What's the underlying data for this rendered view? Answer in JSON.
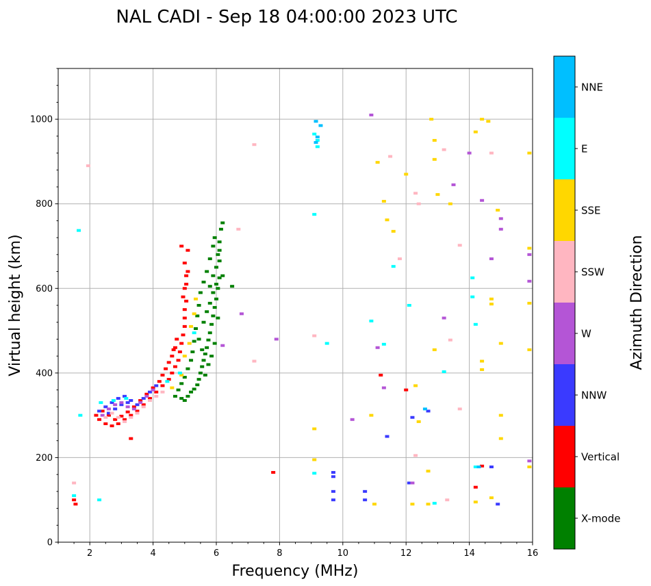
{
  "chart_data": {
    "type": "scatter",
    "title": "NAL CADI - Sep 18 04:00:00 2023 UTC",
    "xlabel": "Frequency (MHz)",
    "ylabel": "Virtual height (km)",
    "xlim": [
      1,
      16
    ],
    "ylim": [
      0,
      1120
    ],
    "xticks": [
      2,
      4,
      6,
      8,
      10,
      12,
      14,
      16
    ],
    "xtick_labels": [
      "2",
      "4",
      "6",
      "8",
      "10",
      "12",
      "14",
      "16"
    ],
    "yticks": [
      0,
      200,
      400,
      600,
      800,
      1000
    ],
    "ytick_labels": [
      "0",
      "200",
      "400",
      "600",
      "800",
      "1000"
    ],
    "grid": true,
    "colorbar": {
      "label": "Azimuth Direction",
      "categories": [
        "X-mode",
        "Vertical",
        "NNW",
        "W",
        "SSW",
        "SSE",
        "E",
        "NNE"
      ],
      "colors": {
        "X-mode": "#008000",
        "Vertical": "#ff0000",
        "NNW": "#3a3aff",
        "W": "#b455d6",
        "SSW": "#ffb6c1",
        "SSE": "#ffd700",
        "E": "#00ffff",
        "NNE": "#00bfff"
      }
    },
    "series": [
      {
        "name": "X-mode",
        "points": [
          [
            5.0,
            335
          ],
          [
            5.1,
            345
          ],
          [
            5.2,
            355
          ],
          [
            5.3,
            362
          ],
          [
            5.4,
            372
          ],
          [
            5.45,
            385
          ],
          [
            5.5,
            400
          ],
          [
            5.55,
            415
          ],
          [
            5.6,
            430
          ],
          [
            5.65,
            445
          ],
          [
            5.7,
            460
          ],
          [
            5.75,
            478
          ],
          [
            5.8,
            495
          ],
          [
            5.85,
            515
          ],
          [
            5.9,
            535
          ],
          [
            5.95,
            555
          ],
          [
            6.0,
            575
          ],
          [
            6.05,
            600
          ],
          [
            6.1,
            625
          ],
          [
            6.0,
            650
          ],
          [
            6.05,
            680
          ],
          [
            6.1,
            710
          ],
          [
            6.15,
            740
          ],
          [
            6.2,
            755
          ],
          [
            5.9,
            700
          ],
          [
            5.8,
            670
          ],
          [
            6.1,
            665
          ],
          [
            5.7,
            640
          ],
          [
            5.6,
            615
          ],
          [
            5.5,
            590
          ],
          [
            5.45,
            560
          ],
          [
            5.4,
            535
          ],
          [
            5.35,
            505
          ],
          [
            5.3,
            475
          ],
          [
            5.25,
            450
          ],
          [
            5.2,
            430
          ],
          [
            5.1,
            410
          ],
          [
            5.0,
            390
          ],
          [
            4.9,
            375
          ],
          [
            4.8,
            360
          ],
          [
            4.7,
            345
          ],
          [
            4.9,
            340
          ],
          [
            5.6,
            520
          ],
          [
            5.7,
            545
          ],
          [
            5.8,
            565
          ],
          [
            5.9,
            590
          ],
          [
            6.0,
            610
          ],
          [
            6.5,
            605
          ],
          [
            6.2,
            630
          ],
          [
            5.95,
            720
          ],
          [
            5.75,
            420
          ],
          [
            5.65,
            395
          ],
          [
            5.85,
            440
          ],
          [
            5.95,
            470
          ],
          [
            6.05,
            530
          ],
          [
            5.55,
            455
          ],
          [
            5.45,
            480
          ],
          [
            5.8,
            605
          ],
          [
            5.9,
            630
          ],
          [
            6.1,
            690
          ]
        ]
      },
      {
        "name": "Vertical",
        "points": [
          [
            2.2,
            300
          ],
          [
            2.3,
            290
          ],
          [
            2.5,
            280
          ],
          [
            2.7,
            275
          ],
          [
            2.9,
            280
          ],
          [
            3.1,
            290
          ],
          [
            3.3,
            300
          ],
          [
            3.5,
            310
          ],
          [
            3.7,
            325
          ],
          [
            3.9,
            340
          ],
          [
            4.1,
            355
          ],
          [
            4.3,
            370
          ],
          [
            4.5,
            385
          ],
          [
            4.6,
            400
          ],
          [
            4.7,
            415
          ],
          [
            4.8,
            430
          ],
          [
            4.85,
            450
          ],
          [
            4.9,
            470
          ],
          [
            4.95,
            490
          ],
          [
            5.0,
            510
          ],
          [
            5.0,
            530
          ],
          [
            5.0,
            550
          ],
          [
            5.05,
            570
          ],
          [
            5.0,
            600
          ],
          [
            5.05,
            630
          ],
          [
            5.0,
            660
          ],
          [
            5.1,
            690
          ],
          [
            4.9,
            700
          ],
          [
            4.7,
            460
          ],
          [
            4.6,
            440
          ],
          [
            4.5,
            425
          ],
          [
            4.4,
            410
          ],
          [
            4.3,
            395
          ],
          [
            4.2,
            380
          ],
          [
            4.0,
            365
          ],
          [
            3.8,
            350
          ],
          [
            3.6,
            335
          ],
          [
            3.4,
            320
          ],
          [
            3.2,
            308
          ],
          [
            3.0,
            298
          ],
          [
            2.8,
            290
          ],
          [
            2.6,
            300
          ],
          [
            2.4,
            310
          ],
          [
            3.3,
            245
          ],
          [
            1.5,
            100
          ],
          [
            1.55,
            90
          ],
          [
            7.8,
            165
          ],
          [
            11.2,
            395
          ],
          [
            12.0,
            360
          ],
          [
            14.2,
            130
          ],
          [
            14.4,
            180
          ],
          [
            4.95,
            580
          ],
          [
            5.05,
            610
          ],
          [
            5.1,
            640
          ],
          [
            4.75,
            480
          ],
          [
            4.65,
            455
          ]
        ]
      },
      {
        "name": "NNW",
        "points": [
          [
            2.3,
            310
          ],
          [
            2.5,
            320
          ],
          [
            2.7,
            330
          ],
          [
            2.9,
            340
          ],
          [
            3.1,
            345
          ],
          [
            3.3,
            335
          ],
          [
            3.5,
            325
          ],
          [
            3.7,
            340
          ],
          [
            3.9,
            355
          ],
          [
            4.1,
            370
          ],
          [
            2.6,
            305
          ],
          [
            2.8,
            315
          ],
          [
            3.0,
            325
          ],
          [
            3.2,
            330
          ],
          [
            9.7,
            165
          ],
          [
            9.7,
            155
          ],
          [
            9.7,
            120
          ],
          [
            9.7,
            100
          ],
          [
            10.7,
            120
          ],
          [
            10.7,
            100
          ],
          [
            11.4,
            250
          ],
          [
            12.1,
            140
          ],
          [
            12.2,
            295
          ],
          [
            12.7,
            310
          ],
          [
            14.7,
            178
          ],
          [
            14.9,
            90
          ]
        ]
      },
      {
        "name": "W",
        "points": [
          [
            2.4,
            300
          ],
          [
            2.6,
            315
          ],
          [
            2.8,
            325
          ],
          [
            3.0,
            330
          ],
          [
            3.2,
            320
          ],
          [
            3.4,
            315
          ],
          [
            3.6,
            330
          ],
          [
            3.8,
            345
          ],
          [
            4.0,
            360
          ],
          [
            6.2,
            465
          ],
          [
            6.8,
            540
          ],
          [
            7.9,
            480
          ],
          [
            10.3,
            290
          ],
          [
            10.9,
            1010
          ],
          [
            11.1,
            460
          ],
          [
            11.3,
            365
          ],
          [
            12.2,
            140
          ],
          [
            13.2,
            530
          ],
          [
            13.5,
            845
          ],
          [
            14.4,
            808
          ],
          [
            14.7,
            670
          ],
          [
            15.0,
            765
          ],
          [
            15.0,
            740
          ],
          [
            15.9,
            680
          ],
          [
            15.9,
            617
          ],
          [
            15.9,
            192
          ],
          [
            14.0,
            920
          ]
        ]
      },
      {
        "name": "SSW",
        "points": [
          [
            2.5,
            295
          ],
          [
            2.7,
            305
          ],
          [
            2.9,
            295
          ],
          [
            3.1,
            285
          ],
          [
            3.3,
            295
          ],
          [
            3.5,
            305
          ],
          [
            3.7,
            320
          ],
          [
            3.9,
            335
          ],
          [
            4.1,
            345
          ],
          [
            4.3,
            355
          ],
          [
            1.5,
            140
          ],
          [
            1.95,
            890
          ],
          [
            6.7,
            740
          ],
          [
            7.2,
            940
          ],
          [
            7.2,
            428
          ],
          [
            9.1,
            488
          ],
          [
            11.5,
            912
          ],
          [
            11.8,
            670
          ],
          [
            12.3,
            825
          ],
          [
            12.4,
            800
          ],
          [
            13.2,
            928
          ],
          [
            13.7,
            702
          ],
          [
            13.4,
            478
          ],
          [
            14.7,
            920
          ],
          [
            13.7,
            315
          ],
          [
            12.3,
            205
          ],
          [
            13.3,
            100
          ]
        ]
      },
      {
        "name": "SSE",
        "points": [
          [
            4.6,
            365
          ],
          [
            4.9,
            395
          ],
          [
            5.0,
            440
          ],
          [
            5.15,
            470
          ],
          [
            5.2,
            510
          ],
          [
            5.3,
            540
          ],
          [
            5.35,
            575
          ],
          [
            11.1,
            898
          ],
          [
            11.4,
            762
          ],
          [
            11.6,
            735
          ],
          [
            11.3,
            806
          ],
          [
            12.0,
            870
          ],
          [
            12.8,
            1000
          ],
          [
            12.9,
            950
          ],
          [
            12.9,
            905
          ],
          [
            13.0,
            822
          ],
          [
            13.4,
            800
          ],
          [
            14.2,
            970
          ],
          [
            14.4,
            1000
          ],
          [
            14.6,
            995
          ],
          [
            14.9,
            785
          ],
          [
            15.9,
            920
          ],
          [
            15.9,
            695
          ],
          [
            15.9,
            565
          ],
          [
            15.9,
            455
          ],
          [
            15.0,
            470
          ],
          [
            14.4,
            428
          ],
          [
            14.4,
            408
          ],
          [
            14.7,
            575
          ],
          [
            14.7,
            563
          ],
          [
            12.9,
            455
          ],
          [
            12.3,
            370
          ],
          [
            12.4,
            285
          ],
          [
            12.7,
            168
          ],
          [
            12.2,
            90
          ],
          [
            12.7,
            90
          ],
          [
            11.0,
            90
          ],
          [
            10.9,
            300
          ],
          [
            9.1,
            268
          ],
          [
            9.1,
            195
          ],
          [
            15.0,
            300
          ],
          [
            14.7,
            105
          ],
          [
            14.2,
            95
          ],
          [
            15.0,
            245
          ],
          [
            15.9,
            178
          ]
        ]
      },
      {
        "name": "E",
        "points": [
          [
            2.35,
            330
          ],
          [
            2.75,
            335
          ],
          [
            3.15,
            340
          ],
          [
            4.45,
            380
          ],
          [
            4.85,
            400
          ],
          [
            5.3,
            495
          ],
          [
            1.5,
            110
          ],
          [
            1.7,
            300
          ],
          [
            1.65,
            737
          ],
          [
            9.1,
            965
          ],
          [
            9.2,
            950
          ],
          [
            9.2,
            935
          ],
          [
            9.1,
            775
          ],
          [
            9.5,
            470
          ],
          [
            9.1,
            163
          ],
          [
            10.9,
            523
          ],
          [
            11.3,
            468
          ],
          [
            11.6,
            652
          ],
          [
            12.1,
            560
          ],
          [
            12.9,
            92
          ],
          [
            13.2,
            403
          ],
          [
            14.1,
            625
          ],
          [
            14.1,
            580
          ],
          [
            14.2,
            515
          ],
          [
            14.2,
            178
          ],
          [
            2.3,
            100
          ]
        ]
      },
      {
        "name": "NNE",
        "points": [
          [
            9.15,
            995
          ],
          [
            9.3,
            985
          ],
          [
            9.2,
            958
          ],
          [
            9.15,
            945
          ],
          [
            12.6,
            315
          ],
          [
            14.3,
            178
          ]
        ]
      }
    ]
  }
}
